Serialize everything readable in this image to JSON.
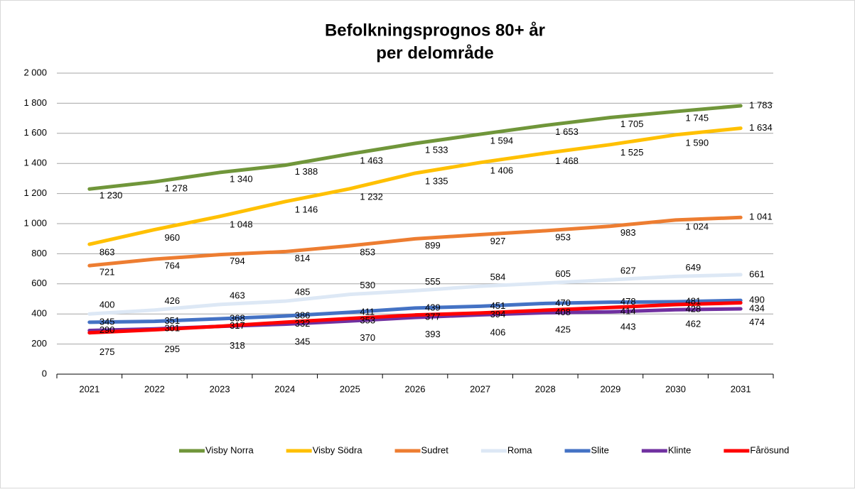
{
  "chart_data": {
    "type": "line",
    "title": [
      "Befolkningsprognos 80+ år",
      "per delområde"
    ],
    "categories": [
      "2021",
      "2022",
      "2023",
      "2024",
      "2025",
      "2026",
      "2027",
      "2028",
      "2029",
      "2030",
      "2031"
    ],
    "ylim": [
      0,
      2000
    ],
    "yticks": [
      0,
      200,
      400,
      600,
      800,
      {
        "value": 1000,
        "label": "1 000"
      },
      {
        "value": 1200,
        "label": "1 200"
      },
      {
        "value": 1400,
        "label": "1 400"
      },
      {
        "value": 1600,
        "label": "1 600"
      },
      {
        "value": 1800,
        "label": "1 800"
      },
      {
        "value": 2000,
        "label": "2 000"
      }
    ],
    "grid": true,
    "legend": "bottom",
    "series": [
      {
        "name": "Visby Norra",
        "color": "#70963a",
        "values": [
          1230,
          1278,
          1340,
          1388,
          1463,
          1533,
          1594,
          1653,
          1705,
          1745,
          1783
        ],
        "value_labels": [
          "1 230",
          "1 278",
          "1 340",
          "1 388",
          "1 463",
          "1 533",
          "1 594",
          "1 653",
          "1 705",
          "1 745",
          "1 783"
        ]
      },
      {
        "name": "Visby Södra",
        "color": "#ffc000",
        "values": [
          863,
          960,
          1048,
          1146,
          1232,
          1335,
          1406,
          1468,
          1525,
          1590,
          1634
        ],
        "value_labels": [
          "863",
          "960",
          "1 048",
          "1 146",
          "1 232",
          "1 335",
          "1 406",
          "1 468",
          "1 525",
          "1 590",
          "1 634"
        ]
      },
      {
        "name": "Sudret",
        "color": "#ed7d31",
        "values": [
          721,
          764,
          794,
          814,
          853,
          899,
          927,
          953,
          983,
          1024,
          1041
        ],
        "value_labels": [
          "721",
          "764",
          "794",
          "814",
          "853",
          "899",
          "927",
          "953",
          "983",
          "1 024",
          "1 041"
        ]
      },
      {
        "name": "Roma",
        "color": "#dde8f5",
        "values": [
          400,
          426,
          463,
          485,
          530,
          555,
          584,
          605,
          627,
          649,
          661
        ]
      },
      {
        "name": "Slite",
        "color": "#4472c4",
        "values": [
          345,
          351,
          368,
          386,
          411,
          439,
          451,
          470,
          478,
          481,
          490
        ]
      },
      {
        "name": "Klinte",
        "color": "#7030a0",
        "values": [
          290,
          301,
          317,
          332,
          353,
          377,
          394,
          408,
          414,
          428,
          434
        ]
      },
      {
        "name": "Fårösund",
        "color": "#ff0000",
        "values": [
          275,
          295,
          318,
          345,
          370,
          393,
          406,
          425,
          443,
          462,
          474
        ]
      }
    ]
  }
}
